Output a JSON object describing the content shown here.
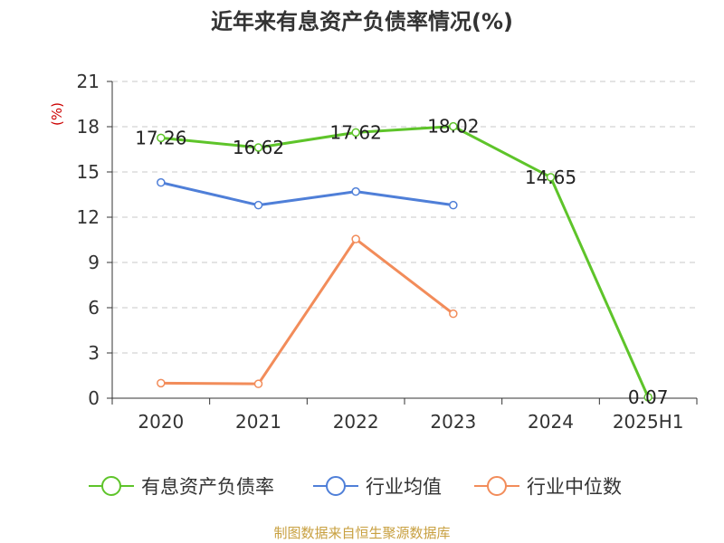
{
  "chart_data": {
    "type": "line",
    "title": "近年来有息资产负债率情况(%)",
    "ylabel": "(%)",
    "xlabel": "",
    "categories": [
      "2020",
      "2021",
      "2022",
      "2023",
      "2024",
      "2025H1"
    ],
    "ylim": [
      0,
      21
    ],
    "yticks": [
      "0",
      "3",
      "6",
      "9",
      "12",
      "15",
      "18",
      "21"
    ],
    "grid": "horizontal-dashed",
    "legend_position": "bottom",
    "series": [
      {
        "name": "有息资产负债率",
        "color": "#5ec42a",
        "values": [
          17.26,
          16.62,
          17.62,
          18.02,
          14.65,
          0.07
        ],
        "labels": [
          "17.26",
          "16.62",
          "17.62",
          "18.02",
          "14.65",
          "0.07"
        ]
      },
      {
        "name": "行业均值",
        "color": "#4f7fd8",
        "values": [
          14.3,
          12.8,
          13.7,
          12.8,
          null,
          null
        ]
      },
      {
        "name": "行业中位数",
        "color": "#f28c5a",
        "values": [
          1.0,
          0.95,
          10.55,
          5.6,
          null,
          null
        ]
      }
    ],
    "footer": "制图数据来自恒生聚源数据库",
    "colors": {
      "axis": "#333333",
      "grid": "#c8c8c8",
      "ylabel": "#cc0000",
      "footer": "#c8a040"
    }
  }
}
